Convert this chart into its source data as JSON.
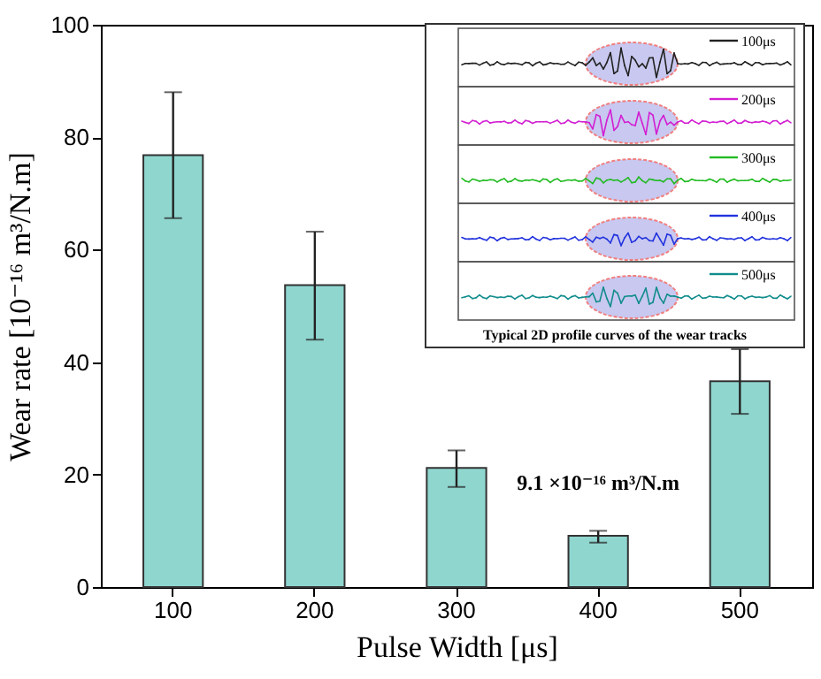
{
  "chart_data": {
    "type": "bar",
    "xlabel": "Pulse Width [μs]",
    "ylabel": "Wear rate [10⁻¹⁶ m³/N.m]",
    "categories": [
      "100",
      "200",
      "300",
      "400",
      "500"
    ],
    "values": [
      76.8,
      53.7,
      21.2,
      9.1,
      36.6
    ],
    "errors": [
      [
        65.6,
        88
      ],
      [
        44,
        63.2
      ],
      [
        17.8,
        24.3
      ],
      [
        7.9,
        10
      ],
      [
        30.8,
        42.3
      ]
    ],
    "color": "#8fd6cf",
    "ylim": [
      0,
      100
    ],
    "yticks": [
      0,
      20,
      40,
      60,
      80,
      100
    ],
    "grid": false,
    "annotations": [
      {
        "text": "9.1 ×10⁻¹⁶ m³/N.m",
        "x": "400",
        "y": 9.1
      },
      "100μs",
      "200μs",
      "300μs",
      "400μs",
      "500μs",
      "Typical 2D profile curves of the wear tracks"
    ]
  }
}
